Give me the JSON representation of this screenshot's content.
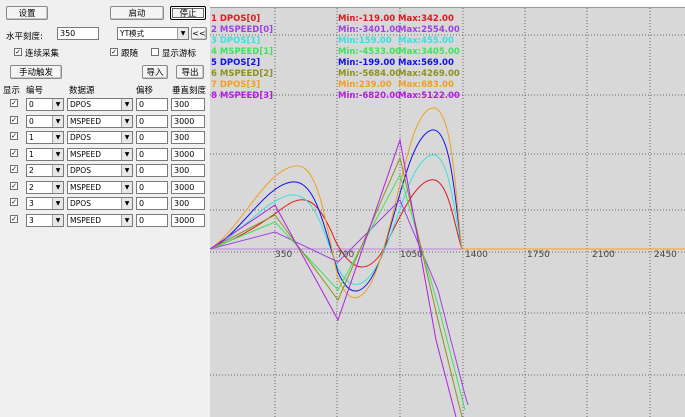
{
  "toolbar": {
    "settings_label": "设置",
    "start_label": "启动",
    "stop_label": "停止"
  },
  "horizontal_scale": {
    "label": "水平刻度:",
    "value": "350"
  },
  "mode": {
    "value": "YT模式",
    "collapse_label": "<<"
  },
  "options": {
    "continuous_label": "连续采集",
    "follow_label": "跟随",
    "cursor_label": "显示游标"
  },
  "buttons": {
    "manual_trigger": "手动触发",
    "import": "导入",
    "export": "导出"
  },
  "table": {
    "headers": {
      "show": "显示",
      "number": "编号",
      "source": "数据源",
      "offset": "偏移",
      "vscale": "垂直刻度"
    },
    "rows": [
      {
        "number": "0",
        "source": "DPOS",
        "offset": "0",
        "vscale": "300"
      },
      {
        "number": "0",
        "source": "MSPEED",
        "offset": "0",
        "vscale": "3000"
      },
      {
        "number": "1",
        "source": "DPOS",
        "offset": "0",
        "vscale": "300"
      },
      {
        "number": "1",
        "source": "MSPEED",
        "offset": "0",
        "vscale": "3000"
      },
      {
        "number": "2",
        "source": "DPOS",
        "offset": "0",
        "vscale": "300"
      },
      {
        "number": "2",
        "source": "MSPEED",
        "offset": "0",
        "vscale": "3000"
      },
      {
        "number": "3",
        "source": "DPOS",
        "offset": "0",
        "vscale": "300"
      },
      {
        "number": "3",
        "source": "MSPEED",
        "offset": "0",
        "vscale": "3000"
      }
    ]
  },
  "chart_data": {
    "type": "line",
    "x_ticks": [
      "350",
      "700",
      "1050",
      "1400",
      "1750",
      "2100",
      "2450"
    ],
    "legend": [
      {
        "name": "1 DPOS[0]",
        "min": "Min:-119.00",
        "max": "Max:342.00",
        "color": "#e0181c"
      },
      {
        "name": "2 MSPEED[0]",
        "min": "Min:-3401.00",
        "max": "Max:2554.00",
        "color": "#a040e0"
      },
      {
        "name": "3 DPOS[1]",
        "min": "Min:159.00",
        "max": "Max:455.00",
        "color": "#38e0e0"
      },
      {
        "name": "4 MSPEED[1]",
        "min": "Min:-4533.00",
        "max": "Max:3405.00",
        "color": "#40e060"
      },
      {
        "name": "5 DPOS[2]",
        "min": "Min:-199.00",
        "max": "Max:569.00",
        "color": "#1010e8"
      },
      {
        "name": "6 MSPEED[2]",
        "min": "Min:-5684.00",
        "max": "Max:4269.00",
        "color": "#909020"
      },
      {
        "name": "7 DPOS[3]",
        "min": "Min:239.00",
        "max": "Max:683.00",
        "color": "#f0a020"
      },
      {
        "name": "8 MSPEED[3]",
        "min": "Min:-6820.00",
        "max": "Max:5122.00",
        "color": "#b020e0"
      }
    ]
  }
}
